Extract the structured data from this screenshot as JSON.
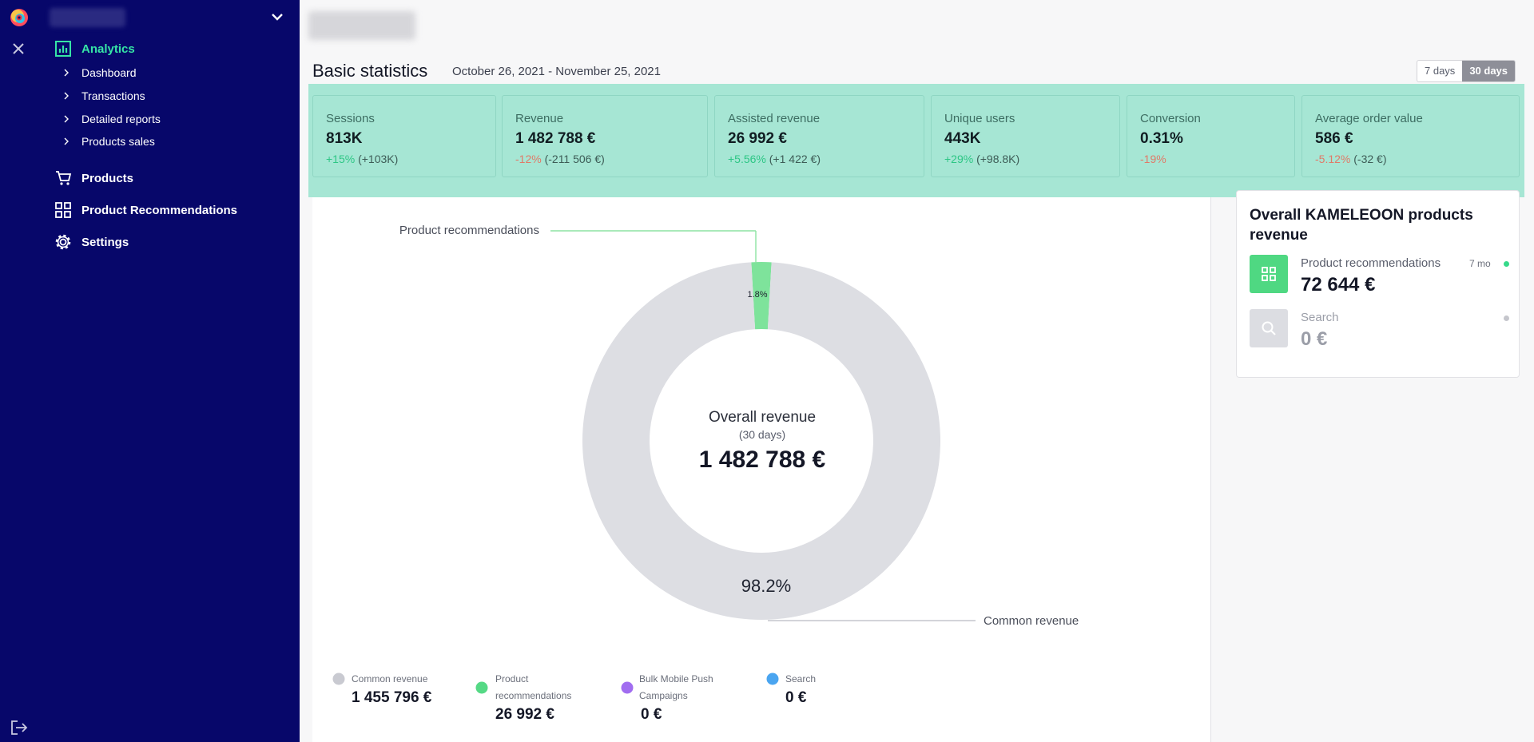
{
  "sidebar": {
    "nav": {
      "analytics": "Analytics",
      "sub": [
        "Dashboard",
        "Transactions",
        "Detailed reports",
        "Products sales"
      ],
      "products": "Products",
      "recommendations": "Product Recommendations",
      "settings": "Settings"
    }
  },
  "stats": {
    "title": "Basic statistics",
    "date_range": "October 26, 2021 - November 25, 2021",
    "ranges": [
      "7 days",
      "30 days"
    ],
    "selected_range": "30 days",
    "cards": [
      {
        "label": "Sessions",
        "value": "813K",
        "pct": "+15%",
        "abs": " (+103K)",
        "trend": "pos"
      },
      {
        "label": "Revenue",
        "value": "1 482 788 €",
        "pct": "-12%",
        "abs": " (-211 506 €)",
        "trend": "neg"
      },
      {
        "label": "Assisted revenue",
        "value": "26 992 €",
        "pct": "+5.56%",
        "abs": " (+1 422 €)",
        "trend": "pos"
      },
      {
        "label": "Unique users",
        "value": "443K",
        "pct": "+29%",
        "abs": " (+98.8K)",
        "trend": "pos"
      },
      {
        "label": "Conversion",
        "value": "0.31%",
        "pct": "-19%",
        "abs": "",
        "trend": "neg"
      },
      {
        "label": "Average order value",
        "value": "586 €",
        "pct": "-5.12%",
        "abs": " (-32 €)",
        "trend": "neg"
      }
    ]
  },
  "chart_data": {
    "type": "pie",
    "center_title": "Overall revenue",
    "center_subtitle": "(30 days)",
    "center_value": "1 482 788 €",
    "slices": [
      {
        "label": "Common revenue",
        "percent": 98.2,
        "percent_label": "98.2%",
        "color": "#dddee3"
      },
      {
        "label": "Product recommendations",
        "percent": 1.8,
        "percent_label": "1.8%",
        "color": "#7ee39b"
      }
    ],
    "legend": [
      {
        "label": "Common revenue",
        "value": "1 455 796 €",
        "color": "#c9cad1"
      },
      {
        "label": "Product recommendations",
        "value": "26 992 €",
        "color": "#55d985"
      },
      {
        "label": "Bulk Mobile Push Campaigns",
        "value": "0 €",
        "color": "#a16df0"
      },
      {
        "label": "Search",
        "value": "0 €",
        "color": "#4aa5f0"
      }
    ]
  },
  "kameleoon": {
    "title": "Overall KAMELEOON products revenue",
    "items": [
      {
        "name": "Product recommendations",
        "value": "72 644 €",
        "time": "7 mo",
        "color": "#4fd882",
        "dot": "#36d98a"
      },
      {
        "name": "Search",
        "value": "0 €",
        "time": "",
        "color": "#dcdde2",
        "dot": "#c5c6cc"
      }
    ]
  }
}
